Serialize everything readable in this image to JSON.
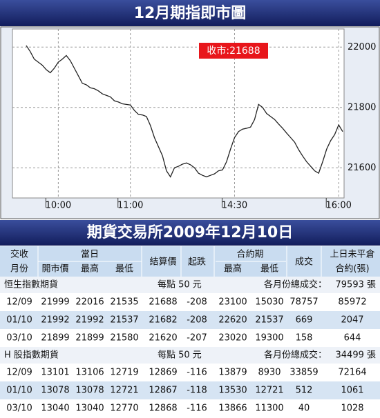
{
  "chart_data": {
    "type": "line",
    "title": "12月期指即市圖",
    "annotation": "收市:21688",
    "categories": [
      null,
      null,
      null,
      null,
      null,
      null,
      null,
      null,
      "10:00",
      null,
      null,
      null,
      null,
      null,
      null,
      null,
      null,
      null,
      null,
      null,
      null,
      null,
      null,
      null,
      null,
      null,
      "11:00",
      null,
      null,
      null,
      null,
      null,
      null,
      null,
      null,
      null,
      null,
      null,
      null,
      null,
      null,
      null,
      null,
      null,
      null,
      null,
      null,
      null,
      null,
      null,
      null,
      null,
      "14:30",
      null,
      null,
      null,
      null,
      null,
      null,
      null,
      null,
      null,
      null,
      null,
      null,
      null,
      null,
      null,
      null,
      null,
      null,
      null,
      null,
      null,
      null,
      null,
      null,
      null,
      "16:00",
      null
    ],
    "values": [
      22005,
      21985,
      21960,
      21950,
      21940,
      21925,
      21915,
      21930,
      21950,
      21960,
      21972,
      21955,
      21930,
      21905,
      21880,
      21875,
      21865,
      21862,
      21855,
      21845,
      21840,
      21835,
      21822,
      21818,
      21812,
      21810,
      21808,
      21790,
      21777,
      21775,
      21770,
      21740,
      21700,
      21670,
      21640,
      21590,
      21570,
      21600,
      21605,
      21612,
      21616,
      21610,
      21600,
      21582,
      21575,
      21570,
      21575,
      21580,
      21590,
      21593,
      21620,
      21662,
      21700,
      21720,
      21728,
      21731,
      21735,
      21760,
      21810,
      21800,
      21780,
      21770,
      21760,
      21745,
      21731,
      21715,
      21700,
      21685,
      21660,
      21639,
      21620,
      21605,
      21590,
      21582,
      21620,
      21662,
      21690,
      21710,
      21742,
      21720
    ],
    "color": "#222222",
    "ylim": [
      21500,
      22060
    ],
    "yticks": [
      21600,
      21800,
      22000
    ],
    "grid": true
  },
  "table": {
    "title": "期貨交易所2009年12月10日",
    "header_top": [
      "交收",
      "當日",
      "合約期",
      "上日未平倉"
    ],
    "header_middle": [
      "結算價",
      "起跌",
      "成交"
    ],
    "header_bottom": [
      "月份",
      "開市價",
      "最高",
      "最低",
      "最高",
      "最低",
      "合約(張)"
    ],
    "sections": [
      {
        "name": "恒生指數期貨",
        "unit": "每點 50 元",
        "total_label": "各月份總成交：",
        "total": "79593 張",
        "rows": [
          [
            "12/09",
            "21999",
            "22016",
            "21535",
            "21688",
            "-208",
            "23100",
            "15030",
            "78757",
            "85972"
          ],
          [
            "01/10",
            "21992",
            "21992",
            "21537",
            "21682",
            "-208",
            "22620",
            "21537",
            "669",
            "2047"
          ],
          [
            "03/10",
            "21899",
            "21899",
            "21580",
            "21620",
            "-207",
            "23020",
            "19300",
            "158",
            "644"
          ]
        ]
      },
      {
        "name": "H 股指數期貨",
        "unit": "每點 50 元",
        "total_label": "各月份總成交：",
        "total": "34499 張",
        "rows": [
          [
            "12/09",
            "13101",
            "13106",
            "12719",
            "12869",
            "-116",
            "13879",
            "8930",
            "33859",
            "72164"
          ],
          [
            "01/10",
            "13078",
            "13078",
            "12721",
            "12867",
            "-118",
            "13530",
            "12721",
            "512",
            "1061"
          ],
          [
            "03/10",
            "13040",
            "13040",
            "12770",
            "12868",
            "-116",
            "13866",
            "11300",
            "40",
            "1028"
          ]
        ]
      }
    ]
  }
}
